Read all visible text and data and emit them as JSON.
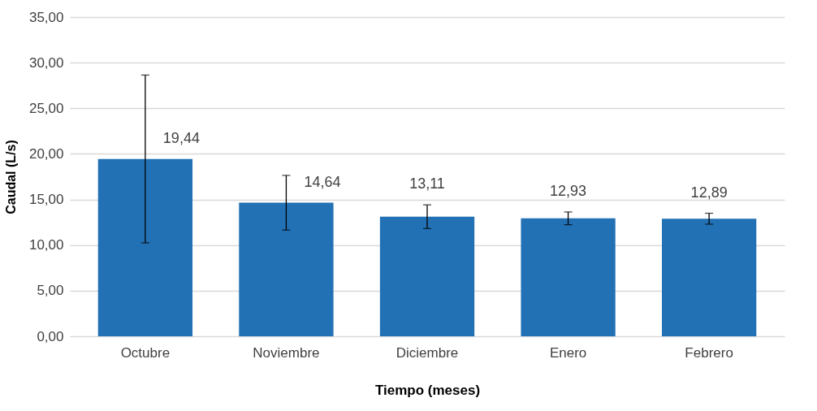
{
  "chart_data": {
    "type": "bar",
    "xlabel": "Tiempo (meses)",
    "ylabel": "Caudal (L/s)",
    "categories": [
      "Octubre",
      "Noviembre",
      "Diciembre",
      "Enero",
      "Febrero"
    ],
    "values": [
      19.44,
      14.64,
      13.11,
      12.93,
      12.89
    ],
    "value_labels": [
      "19,44",
      "14,64",
      "13,11",
      "12,93",
      "12,89"
    ],
    "errors": [
      9.2,
      3.0,
      1.3,
      0.7,
      0.6
    ],
    "color": "#2271b5",
    "ylim": [
      0,
      35
    ],
    "yticks": [
      {
        "value": 0,
        "label": "0,00"
      },
      {
        "value": 5,
        "label": "5,00"
      },
      {
        "value": 10,
        "label": "10,00"
      },
      {
        "value": 15,
        "label": "15,00"
      },
      {
        "value": 20,
        "label": "20,00"
      },
      {
        "value": 25,
        "label": "25,00"
      },
      {
        "value": 30,
        "label": "30,00"
      },
      {
        "value": 35,
        "label": "35,00"
      }
    ],
    "grid": "y"
  }
}
